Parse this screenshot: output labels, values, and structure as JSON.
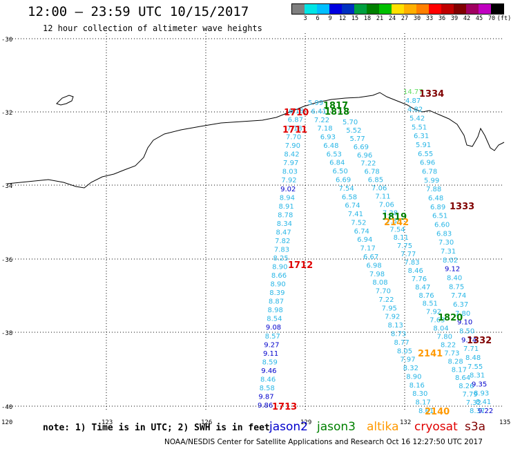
{
  "header": {
    "title": "12:00 – 23:59 UTC 10/15/2017",
    "subtitle": "12 hour collection of altimeter wave heights"
  },
  "colorbar": {
    "colors": [
      "#7f7f7f",
      "#00e5e5",
      "#00bfff",
      "#0000e0",
      "#0030c0",
      "#00a040",
      "#008000",
      "#00c000",
      "#ffe000",
      "#ffb000",
      "#ff8000",
      "#ff0000",
      "#c00000",
      "#800000",
      "#a00060",
      "#c000c0",
      "#000000"
    ],
    "labels": [
      "3",
      "6",
      "9",
      "12",
      "15",
      "18",
      "21",
      "24",
      "27",
      "30",
      "33",
      "36",
      "39",
      "42",
      "45",
      "70",
      "(ft)"
    ]
  },
  "axes": {
    "x_ticks": [
      "120",
      "123",
      "126",
      "129",
      "132",
      "135"
    ],
    "y_ticks": [
      "-30",
      "-32",
      "-34",
      "-36",
      "-38",
      "-40"
    ]
  },
  "tracks": [
    {
      "name": "track-a",
      "color": "#29b6e6",
      "labels": [
        {
          "t": "6.18",
          "c": "#29b6e6"
        },
        {
          "t": "6.87",
          "c": "#29b6e6"
        },
        {
          "t": "7.18",
          "c": "#29b6e6"
        },
        {
          "t": "7.70",
          "c": "#29b6e6"
        },
        {
          "t": "7.90",
          "c": "#29b6e6"
        },
        {
          "t": "8.42",
          "c": "#29b6e6"
        },
        {
          "t": "7.97",
          "c": "#29b6e6"
        },
        {
          "t": "8.03",
          "c": "#29b6e6"
        },
        {
          "t": "7.92",
          "c": "#29b6e6"
        },
        {
          "t": "9.02",
          "c": "#0000cc"
        },
        {
          "t": "8.94",
          "c": "#29b6e6"
        },
        {
          "t": "8.91",
          "c": "#29b6e6"
        },
        {
          "t": "8.78",
          "c": "#29b6e6"
        },
        {
          "t": "8.34",
          "c": "#29b6e6"
        },
        {
          "t": "8.47",
          "c": "#29b6e6"
        },
        {
          "t": "7.82",
          "c": "#29b6e6"
        },
        {
          "t": "7.83",
          "c": "#29b6e6"
        },
        {
          "t": "8.25",
          "c": "#29b6e6"
        },
        {
          "t": "8.90",
          "c": "#29b6e6"
        },
        {
          "t": "8.66",
          "c": "#29b6e6"
        },
        {
          "t": "8.90",
          "c": "#29b6e6"
        },
        {
          "t": "8.39",
          "c": "#29b6e6"
        },
        {
          "t": "8.87",
          "c": "#29b6e6"
        },
        {
          "t": "8.98",
          "c": "#29b6e6"
        },
        {
          "t": "8.54",
          "c": "#29b6e6"
        },
        {
          "t": "9.08",
          "c": "#0000cc"
        },
        {
          "t": "8.57",
          "c": "#29b6e6"
        },
        {
          "t": "9.27",
          "c": "#0000cc"
        },
        {
          "t": "9.11",
          "c": "#0000cc"
        },
        {
          "t": "8.59",
          "c": "#29b6e6"
        },
        {
          "t": "9.46",
          "c": "#0000cc"
        },
        {
          "t": "8.46",
          "c": "#29b6e6"
        },
        {
          "t": "8.58",
          "c": "#29b6e6"
        },
        {
          "t": "9.87",
          "c": "#0000cc"
        },
        {
          "t": "9.86",
          "c": "#0000cc"
        }
      ]
    },
    {
      "name": "track-b",
      "color": "#29b6e6",
      "labels": [
        {
          "t": "5.99",
          "c": "#29b6e6"
        },
        {
          "t": "6.41",
          "c": "#29b6e6"
        },
        {
          "t": "7.22",
          "c": "#29b6e6"
        },
        {
          "t": "7.18",
          "c": "#29b6e6"
        },
        {
          "t": "6.93",
          "c": "#29b6e6"
        },
        {
          "t": "6.48",
          "c": "#29b6e6"
        },
        {
          "t": "6.53",
          "c": "#29b6e6"
        },
        {
          "t": "6.84",
          "c": "#29b6e6"
        },
        {
          "t": "6.50",
          "c": "#29b6e6"
        },
        {
          "t": "6.69",
          "c": "#29b6e6"
        },
        {
          "t": "7.54",
          "c": "#29b6e6"
        },
        {
          "t": "6.58",
          "c": "#29b6e6"
        },
        {
          "t": "6.74",
          "c": "#29b6e6"
        },
        {
          "t": "7.41",
          "c": "#29b6e6"
        },
        {
          "t": "7.52",
          "c": "#29b6e6"
        },
        {
          "t": "6.74",
          "c": "#29b6e6"
        },
        {
          "t": "6.94",
          "c": "#29b6e6"
        },
        {
          "t": "7.17",
          "c": "#29b6e6"
        },
        {
          "t": "6.67",
          "c": "#29b6e6"
        },
        {
          "t": "6.98",
          "c": "#29b6e6"
        },
        {
          "t": "7.98",
          "c": "#29b6e6"
        },
        {
          "t": "8.08",
          "c": "#29b6e6"
        },
        {
          "t": "7.70",
          "c": "#29b6e6"
        },
        {
          "t": "7.22",
          "c": "#29b6e6"
        },
        {
          "t": "7.95",
          "c": "#29b6e6"
        },
        {
          "t": "7.92",
          "c": "#29b6e6"
        },
        {
          "t": "8.13",
          "c": "#29b6e6"
        },
        {
          "t": "8.73",
          "c": "#29b6e6"
        },
        {
          "t": "8.77",
          "c": "#29b6e6"
        },
        {
          "t": "8.05",
          "c": "#29b6e6"
        },
        {
          "t": "7.97",
          "c": "#29b6e6"
        },
        {
          "t": "8.32",
          "c": "#29b6e6"
        },
        {
          "t": "8.90",
          "c": "#29b6e6"
        },
        {
          "t": "8.16",
          "c": "#29b6e6"
        },
        {
          "t": "8.30",
          "c": "#29b6e6"
        },
        {
          "t": "8.17",
          "c": "#29b6e6"
        },
        {
          "t": "8.61",
          "c": "#29b6e6"
        }
      ]
    },
    {
      "name": "track-c",
      "color": "#29b6e6",
      "labels": [
        {
          "t": "5.70",
          "c": "#29b6e6"
        },
        {
          "t": "5.52",
          "c": "#29b6e6"
        },
        {
          "t": "5.77",
          "c": "#29b6e6"
        },
        {
          "t": "6.69",
          "c": "#29b6e6"
        },
        {
          "t": "6.96",
          "c": "#29b6e6"
        },
        {
          "t": "7.22",
          "c": "#29b6e6"
        },
        {
          "t": "6.78",
          "c": "#29b6e6"
        },
        {
          "t": "6.85",
          "c": "#29b6e6"
        },
        {
          "t": "7.06",
          "c": "#29b6e6"
        },
        {
          "t": "7.11",
          "c": "#29b6e6"
        },
        {
          "t": "7.06",
          "c": "#29b6e6"
        },
        {
          "t": "7.28",
          "c": "#29b6e6"
        },
        {
          "t": "7.55",
          "c": "#29b6e6"
        },
        {
          "t": "7.54",
          "c": "#29b6e6"
        },
        {
          "t": "8.11",
          "c": "#29b6e6"
        },
        {
          "t": "7.75",
          "c": "#29b6e6"
        },
        {
          "t": "7.77",
          "c": "#29b6e6"
        },
        {
          "t": "7.83",
          "c": "#29b6e6"
        },
        {
          "t": "8.46",
          "c": "#29b6e6"
        },
        {
          "t": "7.76",
          "c": "#29b6e6"
        },
        {
          "t": "8.47",
          "c": "#29b6e6"
        },
        {
          "t": "8.76",
          "c": "#29b6e6"
        },
        {
          "t": "8.51",
          "c": "#29b6e6"
        },
        {
          "t": "7.92",
          "c": "#29b6e6"
        },
        {
          "t": "7.63",
          "c": "#29b6e6"
        },
        {
          "t": "8.04",
          "c": "#29b6e6"
        },
        {
          "t": "7.80",
          "c": "#29b6e6"
        },
        {
          "t": "8.22",
          "c": "#29b6e6"
        },
        {
          "t": "7.73",
          "c": "#29b6e6"
        },
        {
          "t": "8.28",
          "c": "#29b6e6"
        },
        {
          "t": "8.17",
          "c": "#29b6e6"
        },
        {
          "t": "8.64",
          "c": "#29b6e6"
        },
        {
          "t": "8.26",
          "c": "#29b6e6"
        },
        {
          "t": "7.79",
          "c": "#29b6e6"
        },
        {
          "t": "7.32",
          "c": "#29b6e6"
        },
        {
          "t": "8.37",
          "c": "#29b6e6"
        }
      ]
    },
    {
      "name": "track-d",
      "color": "#29b6e6",
      "labels": [
        {
          "t": "14.77",
          "c": "#66e066"
        },
        {
          "t": "4.87",
          "c": "#29b6e6"
        },
        {
          "t": "4.82",
          "c": "#29b6e6"
        },
        {
          "t": "5.42",
          "c": "#29b6e6"
        },
        {
          "t": "5.51",
          "c": "#29b6e6"
        },
        {
          "t": "6.31",
          "c": "#29b6e6"
        },
        {
          "t": "5.91",
          "c": "#29b6e6"
        },
        {
          "t": "6.55",
          "c": "#29b6e6"
        },
        {
          "t": "6.96",
          "c": "#29b6e6"
        },
        {
          "t": "6.78",
          "c": "#29b6e6"
        },
        {
          "t": "5.99",
          "c": "#29b6e6"
        },
        {
          "t": "7.88",
          "c": "#29b6e6"
        },
        {
          "t": "6.48",
          "c": "#29b6e6"
        },
        {
          "t": "6.89",
          "c": "#29b6e6"
        },
        {
          "t": "6.51",
          "c": "#29b6e6"
        },
        {
          "t": "6.60",
          "c": "#29b6e6"
        },
        {
          "t": "6.83",
          "c": "#29b6e6"
        },
        {
          "t": "7.30",
          "c": "#29b6e6"
        },
        {
          "t": "7.31",
          "c": "#29b6e6"
        },
        {
          "t": "8.02",
          "c": "#29b6e6"
        },
        {
          "t": "9.12",
          "c": "#0000cc"
        },
        {
          "t": "8.40",
          "c": "#29b6e6"
        },
        {
          "t": "8.75",
          "c": "#29b6e6"
        },
        {
          "t": "7.74",
          "c": "#29b6e6"
        },
        {
          "t": "6.37",
          "c": "#29b6e6"
        },
        {
          "t": "7.80",
          "c": "#29b6e6"
        },
        {
          "t": "9.10",
          "c": "#0000cc"
        },
        {
          "t": "8.50",
          "c": "#29b6e6"
        },
        {
          "t": "9.74",
          "c": "#0000cc"
        },
        {
          "t": "7.71",
          "c": "#29b6e6"
        },
        {
          "t": "8.48",
          "c": "#29b6e6"
        },
        {
          "t": "7.55",
          "c": "#29b6e6"
        },
        {
          "t": "8.31",
          "c": "#29b6e6"
        },
        {
          "t": "9.35",
          "c": "#0000cc"
        },
        {
          "t": "8.93",
          "c": "#29b6e6"
        },
        {
          "t": "8.41",
          "c": "#29b6e6"
        },
        {
          "t": "9.22",
          "c": "#0000cc"
        }
      ]
    }
  ],
  "time_labels": [
    {
      "t": "1710",
      "c": "#e00000"
    },
    {
      "t": "1711",
      "c": "#e00000"
    },
    {
      "t": "1817",
      "c": "#008000"
    },
    {
      "t": "1818",
      "c": "#008000"
    },
    {
      "t": "1334",
      "c": "#800000"
    },
    {
      "t": "1333",
      "c": "#800000"
    },
    {
      "t": "1819",
      "c": "#008000"
    },
    {
      "t": "2142",
      "c": "#ff9900"
    },
    {
      "t": "1712",
      "c": "#e00000"
    },
    {
      "t": "1820",
      "c": "#008000"
    },
    {
      "t": "1332",
      "c": "#800000"
    },
    {
      "t": "2141",
      "c": "#ff9900"
    },
    {
      "t": "2140",
      "c": "#ff9900"
    },
    {
      "t": "1713",
      "c": "#e00000"
    }
  ],
  "legend": {
    "note": "note: 1) Time is in UTC; 2) SWH is in feet",
    "sats": [
      {
        "t": "jason2",
        "c": "#0000cc"
      },
      {
        "t": "jason3",
        "c": "#008000"
      },
      {
        "t": "altika",
        "c": "#ff9900"
      },
      {
        "t": "cryosat",
        "c": "#e00000"
      },
      {
        "t": "s3a",
        "c": "#800000"
      }
    ]
  },
  "footer": {
    "credit": "NOAA/NESDIS Center for Satellite Applications and Research   Oct 16 12:27:50 UTC 2017"
  }
}
